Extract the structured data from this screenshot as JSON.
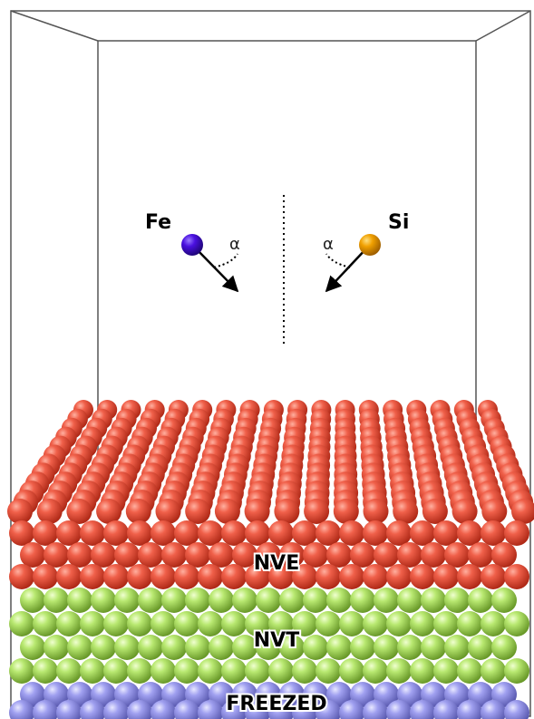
{
  "labels": {
    "fe": "Fe",
    "si": "Si",
    "alpha_left": "α",
    "alpha_right": "α",
    "nve": "NVE",
    "nvt": "NVT",
    "freezed": "FREEZED"
  }
}
